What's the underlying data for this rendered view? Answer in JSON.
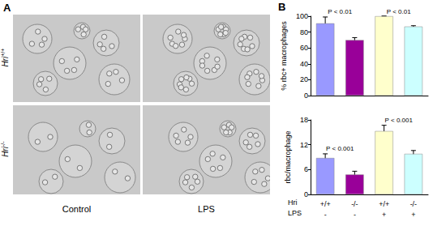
{
  "panel_a": {
    "label": "A",
    "rows": [
      {
        "gene": "Hri",
        "genotype": "+/+"
      },
      {
        "gene": "Hri",
        "genotype": "-/-"
      }
    ],
    "columns": [
      "Control",
      "LPS"
    ]
  },
  "panel_b": {
    "label": "B"
  },
  "chart_data": [
    {
      "type": "bar",
      "categories": [
        null,
        null,
        null,
        null
      ],
      "values": [
        91,
        70,
        100,
        87
      ],
      "errors": [
        8,
        3,
        0,
        1
      ],
      "colors": [
        "#9999ff",
        "#990099",
        "#ffffcc",
        "#ccffff"
      ],
      "ylabel": "% rbc+ macrophages",
      "ylim": [
        0,
        100
      ],
      "yticks": [
        0,
        20,
        40,
        60,
        80,
        100
      ],
      "annotations": [
        {
          "text": "P < 0.01",
          "between": [
            0,
            1
          ]
        },
        {
          "text": "P < 0.01",
          "between": [
            2,
            3
          ]
        }
      ],
      "tick_labels": "y"
    },
    {
      "type": "bar",
      "categories": [
        null,
        null,
        null,
        null
      ],
      "values": [
        8.8,
        4.8,
        15.3,
        9.8
      ],
      "errors": [
        1,
        0.8,
        1.4,
        0.8
      ],
      "colors": [
        "#9999ff",
        "#990099",
        "#ffffcc",
        "#ccffff"
      ],
      "ylabel": "rbc/macrophage",
      "ylim": [
        0,
        18
      ],
      "yticks": [
        0,
        6,
        12,
        18
      ],
      "annotations": [
        {
          "text": "P < 0.001",
          "between": [
            0,
            1
          ]
        },
        {
          "text": "P < 0.001",
          "between": [
            2,
            3
          ]
        }
      ],
      "x_table": {
        "rows": [
          {
            "label": "Hri",
            "values": [
              "+/+",
              "-/-",
              "+/+",
              "-/-"
            ]
          },
          {
            "label": "LPS",
            "values": [
              "-",
              "-",
              "+",
              "+"
            ]
          }
        ]
      }
    }
  ]
}
